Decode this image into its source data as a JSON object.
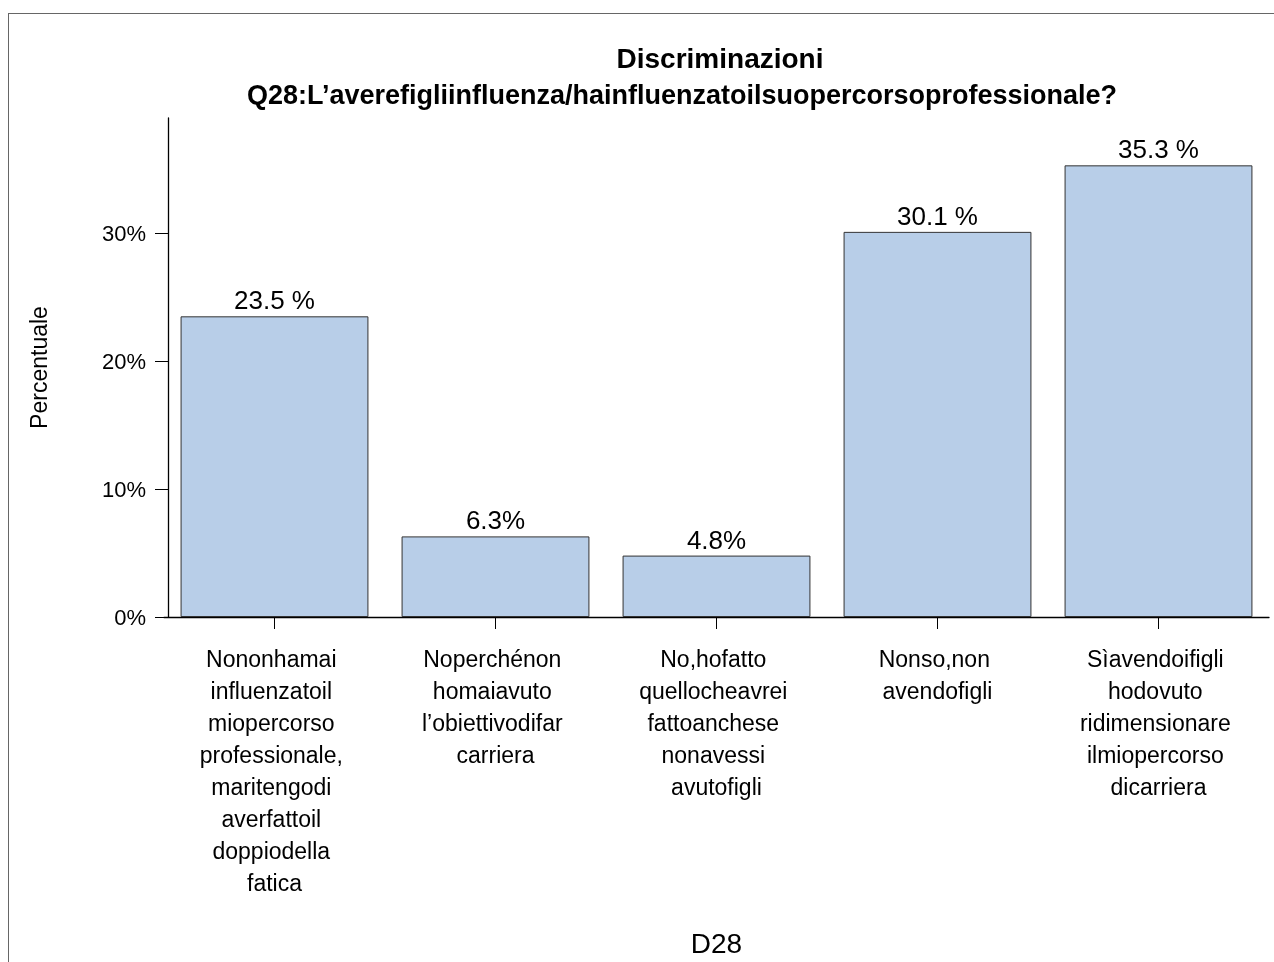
{
  "chart_data": {
    "type": "bar",
    "title": "Discriminazioni",
    "subtitle": "Q28:L’averefigliinfluenza/hainfluenzatoilsuopercorsoprofessionale?",
    "xlabel": "D28",
    "ylabel": "Percentuale",
    "categories": [
      "Nononhamai influenzatoil miopercorso professionale, maritengodi averfattoil doppiodella fatica",
      "Noperchénon homaiavuto l’obiettivodifar carriera",
      "No,hofatto quellocheavrei fattoanchese nonavessi avutofigli",
      "Nonso,non avendofigli",
      "Sìavendoifigli hodovuto ridimensionare ilmiopercorso dicarriera"
    ],
    "values": [
      23.5,
      6.3,
      4.8,
      30.1,
      35.3
    ],
    "value_labels": [
      "23.5 %",
      "6.3%",
      "4.8%",
      "30.1 %",
      "35.3 %"
    ],
    "color": "#b8cee8",
    "ylim": [
      0,
      39
    ],
    "yticks": [
      {
        "value": 0,
        "label": "0%"
      },
      {
        "value": 10,
        "label": "10%"
      },
      {
        "value": 20,
        "label": "20%"
      },
      {
        "value": 30,
        "label": "30%"
      }
    ]
  }
}
